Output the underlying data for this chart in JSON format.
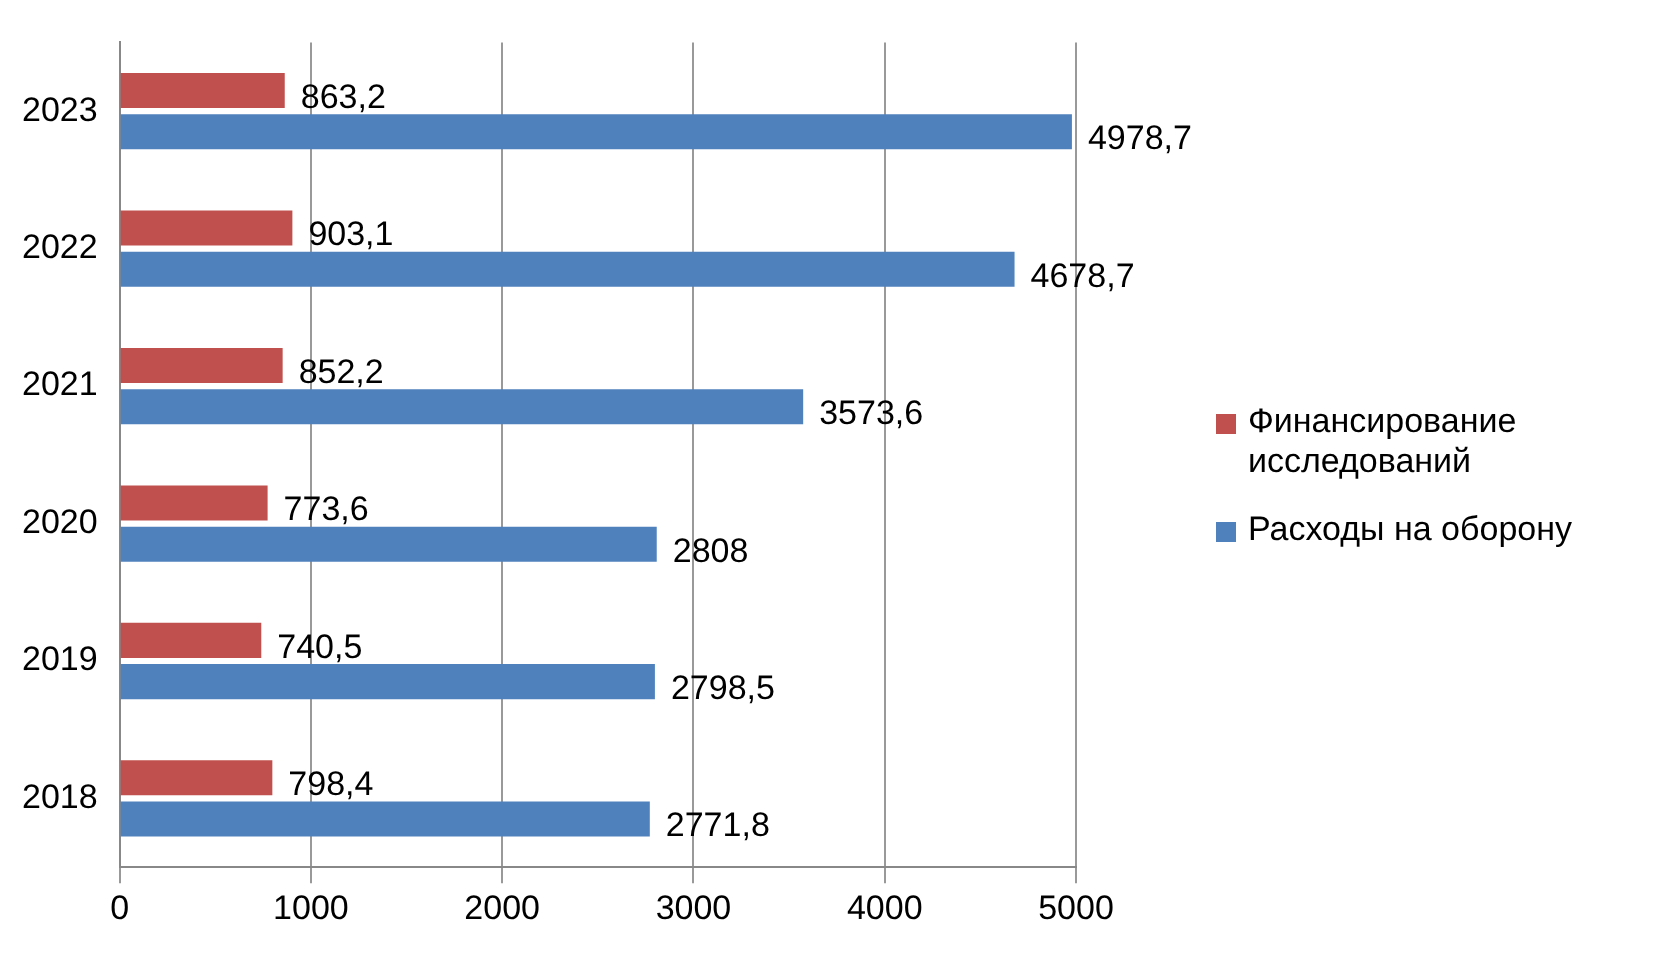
{
  "chart_data": {
    "type": "bar",
    "orientation": "horizontal",
    "categories": [
      "2023",
      "2022",
      "2021",
      "2020",
      "2019",
      "2018"
    ],
    "series": [
      {
        "name": "Финансирование исследований",
        "color": "#c0504d",
        "values": [
          863.2,
          903.1,
          852.2,
          773.6,
          740.5,
          798.4
        ],
        "value_labels": [
          "863,2",
          "903,1",
          "852,2",
          "773,6",
          "740,5",
          "798,4"
        ]
      },
      {
        "name": "Расходы на оборону",
        "color": "#4f81bd",
        "values": [
          4978.7,
          4678.7,
          3573.6,
          2808,
          2798.5,
          2771.8
        ],
        "value_labels": [
          "4978,7",
          "4678,7",
          "3573,6",
          "2808",
          "2798,5",
          "2771,8"
        ]
      }
    ],
    "xlim": [
      0,
      5000
    ],
    "xticks": [
      0,
      1000,
      2000,
      3000,
      4000,
      5000
    ],
    "grid": "x",
    "legend": "right"
  }
}
